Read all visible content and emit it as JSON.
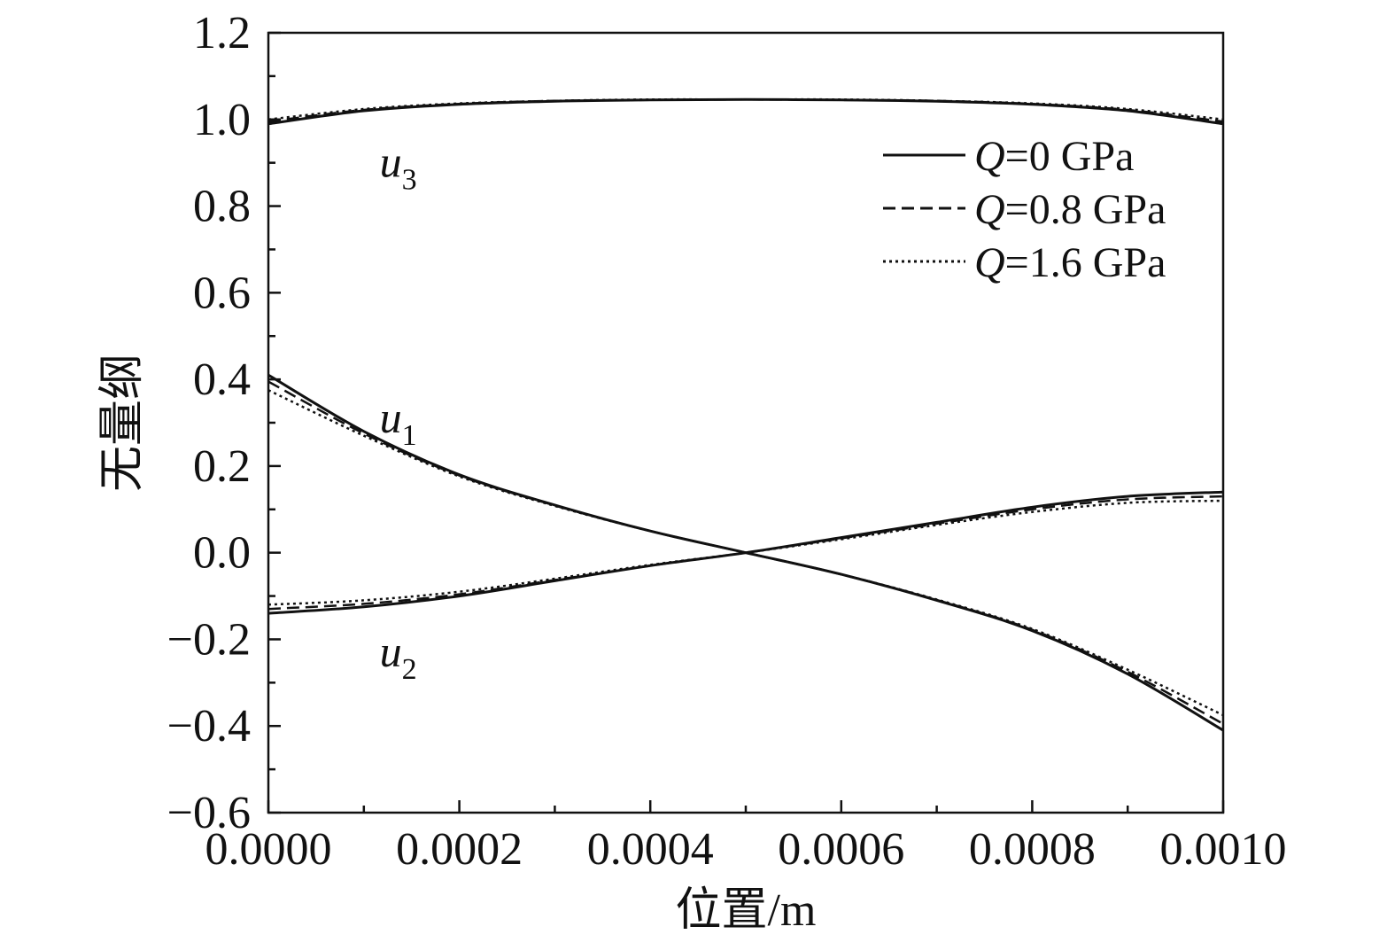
{
  "chart_data": {
    "type": "line",
    "title": "",
    "xlabel": "位置/m",
    "ylabel": "无量纲",
    "xlim": [
      0,
      0.001
    ],
    "ylim": [
      -0.6,
      1.2
    ],
    "xticks": [
      "0.0000",
      "0.0002",
      "0.0004",
      "0.0006",
      "0.0008",
      "0.0010"
    ],
    "xtick_values": [
      0,
      0.0002,
      0.0004,
      0.0006,
      0.0008,
      0.001
    ],
    "yticks": [
      "1.2",
      "1.0",
      "0.8",
      "0.6",
      "0.4",
      "0.2",
      "0.0",
      "−0.2",
      "−0.4",
      "−0.6"
    ],
    "ytick_values": [
      1.2,
      1.0,
      0.8,
      0.6,
      0.4,
      0.2,
      0.0,
      -0.2,
      -0.4,
      -0.6
    ],
    "grid": false,
    "legend_position": "top-right",
    "legend": [
      {
        "var": "Q",
        "rest": "=0 GPa",
        "style": "solid"
      },
      {
        "var": "Q",
        "rest": "=0.8 GPa",
        "style": "dashed"
      },
      {
        "var": "Q",
        "rest": "=1.6 GPa",
        "style": "dotted"
      }
    ],
    "curve_labels": [
      {
        "base": "u",
        "sub": "3",
        "x": 0.00011,
        "y": 0.9
      },
      {
        "base": "u",
        "sub": "1",
        "x": 0.00011,
        "y": 0.31
      },
      {
        "base": "u",
        "sub": "2",
        "x": 0.00011,
        "y": -0.23
      }
    ],
    "x": [
      0,
      0.0001,
      0.0002,
      0.0003,
      0.0004,
      0.0005,
      0.0006,
      0.0007,
      0.0008,
      0.0009,
      0.001
    ],
    "series": [
      {
        "curve": "u3",
        "style": "solid",
        "values": [
          0.99,
          1.02,
          1.035,
          1.042,
          1.045,
          1.046,
          1.045,
          1.042,
          1.035,
          1.02,
          0.99
        ]
      },
      {
        "curve": "u3",
        "style": "dashed",
        "values": [
          0.995,
          1.022,
          1.036,
          1.043,
          1.045,
          1.046,
          1.045,
          1.043,
          1.036,
          1.022,
          0.995
        ]
      },
      {
        "curve": "u3",
        "style": "dotted",
        "values": [
          1.0,
          1.024,
          1.037,
          1.043,
          1.046,
          1.046,
          1.046,
          1.043,
          1.037,
          1.024,
          1.0
        ]
      },
      {
        "curve": "u1",
        "style": "solid",
        "values": [
          0.41,
          0.28,
          0.18,
          0.11,
          0.05,
          0.0,
          -0.05,
          -0.11,
          -0.18,
          -0.28,
          -0.41
        ]
      },
      {
        "curve": "u1",
        "style": "dashed",
        "values": [
          0.395,
          0.275,
          0.178,
          0.109,
          0.05,
          0.0,
          -0.05,
          -0.109,
          -0.178,
          -0.275,
          -0.395
        ]
      },
      {
        "curve": "u1",
        "style": "dotted",
        "values": [
          0.375,
          0.27,
          0.176,
          0.108,
          0.05,
          0.0,
          -0.05,
          -0.108,
          -0.176,
          -0.27,
          -0.375
        ]
      },
      {
        "curve": "u2",
        "style": "solid",
        "values": [
          -0.14,
          -0.125,
          -0.1,
          -0.065,
          -0.03,
          0.0,
          0.035,
          0.07,
          0.105,
          0.13,
          0.14
        ]
      },
      {
        "curve": "u2",
        "style": "dashed",
        "values": [
          -0.13,
          -0.118,
          -0.096,
          -0.063,
          -0.03,
          0.0,
          0.033,
          0.067,
          0.1,
          0.123,
          0.13
        ]
      },
      {
        "curve": "u2",
        "style": "dotted",
        "values": [
          -0.12,
          -0.11,
          -0.09,
          -0.06,
          -0.028,
          0.0,
          0.031,
          0.064,
          0.094,
          0.115,
          0.12
        ]
      }
    ]
  }
}
